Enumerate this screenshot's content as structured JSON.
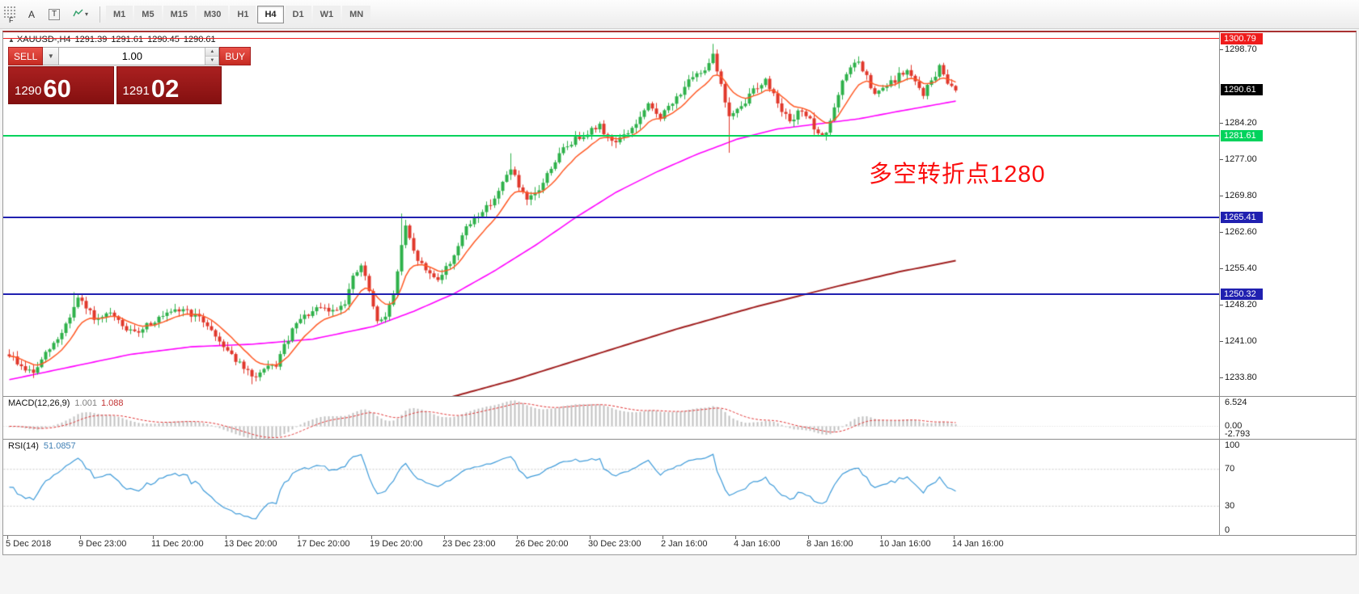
{
  "toolbar": {
    "f_label": "F",
    "tools": [
      {
        "id": "cursor",
        "label": "A"
      },
      {
        "id": "text",
        "label": "T"
      },
      {
        "id": "line-studies",
        "label": "lines"
      }
    ],
    "timeframes": [
      {
        "label": "M1"
      },
      {
        "label": "M5"
      },
      {
        "label": "M15"
      },
      {
        "label": "M30"
      },
      {
        "label": "H1"
      },
      {
        "label": "H4",
        "active": true
      },
      {
        "label": "D1"
      },
      {
        "label": "W1"
      },
      {
        "label": "MN"
      }
    ]
  },
  "chart": {
    "header": {
      "marker": "▲",
      "symbol": "XAUUSD-,H4",
      "open": "1291.39",
      "high": "1291.61",
      "low": "1290.45",
      "close": "1290.61"
    },
    "one_click": {
      "sell_label": "SELL",
      "buy_label": "BUY",
      "volume": "1.00",
      "bid_main": "1290",
      "bid_pips": "60",
      "ask_main": "1291",
      "ask_pips": "02"
    },
    "annotation": {
      "text": "多空转折点1280",
      "color": "#fb0d0d"
    },
    "y_axis_ticks": [
      "1298.70",
      "1284.20",
      "1277.00",
      "1269.80",
      "1262.60",
      "1255.40",
      "1248.20",
      "1241.00",
      "1233.80"
    ],
    "badges": [
      {
        "value": "1300.79",
        "price": 1300.79,
        "bg": "#ef1c1c",
        "line_color": "#ef1c1c",
        "thickness": 1
      },
      {
        "value": "1290.61",
        "price": 1290.61,
        "bg": "#000000"
      },
      {
        "value": "1281.61",
        "price": 1281.61,
        "bg": "#00d35c",
        "line_color": "#00d35c",
        "thickness": 2
      },
      {
        "value": "1265.41",
        "price": 1265.41,
        "bg": "#2020b0",
        "line_color": "#2020b0",
        "thickness": 2
      },
      {
        "value": "1250.32",
        "price": 1250.32,
        "bg": "#2020b0",
        "line_color": "#2020b0",
        "thickness": 2
      }
    ],
    "x_axis_labels": [
      "5 Dec 2018",
      "9 Dec 23:00",
      "11 Dec 20:00",
      "13 Dec 20:00",
      "17 Dec 20:00",
      "19 Dec 20:00",
      "23 Dec 23:00",
      "26 Dec 20:00",
      "30 Dec 23:00",
      "2 Jan 16:00",
      "4 Jan 16:00",
      "8 Jan 16:00",
      "10 Jan 16:00",
      "14 Jan 16:00"
    ]
  },
  "macd": {
    "label": "MACD(12,26,9)",
    "value_main": "1.001",
    "value_signal": "1.088",
    "scale_max": "6.524",
    "scale_zero": "0.00",
    "scale_min": "-2.793",
    "hist_color": "#c0c0c0",
    "signal_color": "#e03232"
  },
  "rsi": {
    "label": "RSI(14)",
    "value": "51.0857",
    "levels": [
      "100",
      "70",
      "30",
      "0"
    ],
    "level_lines": [
      70,
      30
    ],
    "line_color": "#3f9bd9"
  },
  "chart_data": {
    "type": "candlestick",
    "symbol": "XAUUSD-",
    "timeframe": "H4",
    "current_bar": {
      "open": 1291.39,
      "high": 1291.61,
      "low": 1290.45,
      "close": 1290.61
    },
    "bars": 235,
    "price_top": 1302.0,
    "price_bottom": 1230.2,
    "colors": {
      "bull": "#2eb14a",
      "bear": "#e0372b",
      "ma_fast": "#ff5a26",
      "ma_mid": "#ff00ff",
      "ma_slow": "#a02020"
    },
    "ma_fast_period": 10,
    "close_anchors": [
      [
        0,
        1238.5
      ],
      [
        3,
        1236.0
      ],
      [
        6,
        1234.8
      ],
      [
        9,
        1238.5
      ],
      [
        12,
        1241.5
      ],
      [
        15,
        1246.0
      ],
      [
        17,
        1249.5
      ],
      [
        19,
        1247.5
      ],
      [
        22,
        1245.0
      ],
      [
        25,
        1246.5
      ],
      [
        28,
        1244.0
      ],
      [
        31,
        1242.5
      ],
      [
        34,
        1244.5
      ],
      [
        37,
        1245.5
      ],
      [
        40,
        1246.5
      ],
      [
        43,
        1247.5
      ],
      [
        46,
        1246.0
      ],
      [
        49,
        1244.5
      ],
      [
        51,
        1242.0
      ],
      [
        54,
        1239.5
      ],
      [
        57,
        1236.5
      ],
      [
        60,
        1234.0
      ],
      [
        63,
        1235.2
      ],
      [
        66,
        1236.5
      ],
      [
        68,
        1240.0
      ],
      [
        71,
        1244.5
      ],
      [
        74,
        1246.5
      ],
      [
        77,
        1247.5
      ],
      [
        80,
        1247.0
      ],
      [
        83,
        1249.0
      ],
      [
        85,
        1253.5
      ],
      [
        87,
        1256.0
      ],
      [
        89,
        1251.0
      ],
      [
        91,
        1244.5
      ],
      [
        93,
        1246.5
      ],
      [
        95,
        1250.0
      ],
      [
        97,
        1260.0
      ],
      [
        98,
        1263.5
      ],
      [
        100,
        1258.5
      ],
      [
        103,
        1255.0
      ],
      [
        106,
        1253.5
      ],
      [
        109,
        1256.5
      ],
      [
        112,
        1262.0
      ],
      [
        115,
        1265.5
      ],
      [
        118,
        1267.5
      ],
      [
        121,
        1270.5
      ],
      [
        124,
        1275.5
      ],
      [
        126,
        1271.5
      ],
      [
        128,
        1268.5
      ],
      [
        131,
        1271.0
      ],
      [
        134,
        1275.5
      ],
      [
        137,
        1279.0
      ],
      [
        140,
        1281.0
      ],
      [
        143,
        1282.5
      ],
      [
        146,
        1283.5
      ],
      [
        149,
        1280.5
      ],
      [
        152,
        1281.5
      ],
      [
        155,
        1284.0
      ],
      [
        158,
        1287.5
      ],
      [
        161,
        1285.5
      ],
      [
        164,
        1288.0
      ],
      [
        167,
        1291.5
      ],
      [
        170,
        1293.5
      ],
      [
        172,
        1295.0
      ],
      [
        174,
        1298.0
      ],
      [
        176,
        1291.5
      ],
      [
        178,
        1285.5
      ],
      [
        181,
        1287.0
      ],
      [
        184,
        1291.0
      ],
      [
        187,
        1292.5
      ],
      [
        190,
        1288.5
      ],
      [
        193,
        1284.0
      ],
      [
        196,
        1287.0
      ],
      [
        198,
        1284.5
      ],
      [
        200,
        1281.5
      ],
      [
        202,
        1282.5
      ],
      [
        204,
        1287.0
      ],
      [
        206,
        1292.0
      ],
      [
        208,
        1295.5
      ],
      [
        210,
        1296.0
      ],
      [
        212,
        1293.0
      ],
      [
        214,
        1289.5
      ],
      [
        216,
        1291.0
      ],
      [
        218,
        1292.0
      ],
      [
        220,
        1293.5
      ],
      [
        222,
        1294.5
      ],
      [
        224,
        1292.0
      ],
      [
        226,
        1290.0
      ],
      [
        228,
        1292.5
      ],
      [
        230,
        1295.0
      ],
      [
        232,
        1292.5
      ],
      [
        234,
        1290.6
      ]
    ],
    "wick_overrides": [
      {
        "i": 16,
        "high": 1250.8
      },
      {
        "i": 60,
        "low": 1232.6
      },
      {
        "i": 97,
        "high": 1266.3
      },
      {
        "i": 124,
        "high": 1278.2
      },
      {
        "i": 174,
        "high": 1299.8
      },
      {
        "i": 178,
        "low": 1278.3
      }
    ],
    "ma_mid_anchors": [
      [
        0,
        1233.5
      ],
      [
        15,
        1236.0
      ],
      [
        30,
        1238.5
      ],
      [
        45,
        1240.0
      ],
      [
        60,
        1240.5
      ],
      [
        75,
        1241.5
      ],
      [
        90,
        1244.0
      ],
      [
        100,
        1247.0
      ],
      [
        110,
        1250.5
      ],
      [
        120,
        1255.0
      ],
      [
        130,
        1260.0
      ],
      [
        140,
        1265.5
      ],
      [
        150,
        1270.5
      ],
      [
        160,
        1274.5
      ],
      [
        170,
        1278.0
      ],
      [
        180,
        1281.0
      ],
      [
        190,
        1283.0
      ],
      [
        200,
        1284.0
      ],
      [
        210,
        1285.0
      ],
      [
        220,
        1286.5
      ],
      [
        234,
        1288.5
      ]
    ],
    "ma_slow_anchors": [
      [
        108,
        1229.8
      ],
      [
        125,
        1233.5
      ],
      [
        145,
        1238.5
      ],
      [
        165,
        1243.5
      ],
      [
        185,
        1248.0
      ],
      [
        205,
        1252.0
      ],
      [
        220,
        1254.8
      ],
      [
        234,
        1257.0
      ]
    ],
    "horizontal_levels": [
      1300.79,
      1290.61,
      1281.61,
      1265.41,
      1250.32
    ],
    "indicators": [
      {
        "name": "MACD",
        "params": [
          12,
          26,
          9
        ],
        "values": [
          1.001,
          1.088
        ]
      },
      {
        "name": "RSI",
        "params": [
          14
        ],
        "values": [
          51.0857
        ]
      }
    ]
  }
}
